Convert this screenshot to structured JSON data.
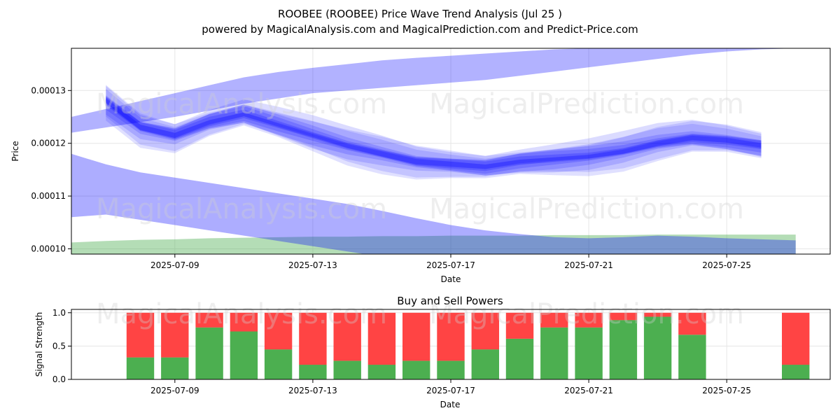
{
  "title": "ROOBEE (ROOBEE) Price Wave Trend Analysis (Jul 25 )",
  "subtitle": "powered by MagicalAnalysis.com and MagicalPrediction.com and Predict-Price.com",
  "watermarks": [
    "MagicalAnalysis.com",
    "MagicalPrediction.com"
  ],
  "colors": {
    "band": "#0000ff",
    "bandFade": "#8080ff",
    "green": "#4caf50",
    "red": "#ff4444",
    "lowBand": "#6b8fc0"
  },
  "chart_data": [
    {
      "type": "area",
      "xlabel": "Date",
      "ylabel": "Price",
      "x_tick_labels": [
        "2025-07-09",
        "2025-07-13",
        "2025-07-17",
        "2025-07-21",
        "2025-07-25"
      ],
      "y_tick_labels": [
        "0.00010",
        "0.00011",
        "0.00012",
        "0.00013"
      ],
      "ylim": [
        9.9e-05,
        0.000138
      ],
      "xlim": [
        "2025-07-06",
        "2025-07-28"
      ],
      "grid": true,
      "x": [
        "2025-07-06",
        "2025-07-07",
        "2025-07-08",
        "2025-07-09",
        "2025-07-10",
        "2025-07-11",
        "2025-07-12",
        "2025-07-13",
        "2025-07-14",
        "2025-07-15",
        "2025-07-16",
        "2025-07-17",
        "2025-07-18",
        "2025-07-19",
        "2025-07-20",
        "2025-07-21",
        "2025-07-22",
        "2025-07-23",
        "2025-07-24",
        "2025-07-25",
        "2025-07-26",
        "2025-07-27"
      ],
      "series": [
        {
          "role": "upper-wide-band",
          "lower": [
            0.000122,
            0.000123,
            0.000124,
            0.000125,
            0.0001262,
            0.0001275,
            0.0001285,
            0.0001295,
            0.00013,
            0.0001305,
            0.000131,
            0.0001315,
            0.000132,
            0.0001328,
            0.0001336,
            0.0001344,
            0.0001352,
            0.000136,
            0.0001368,
            0.0001374,
            0.0001378,
            0.000138
          ],
          "upper": [
            0.000125,
            0.0001265,
            0.000128,
            0.0001295,
            0.000131,
            0.0001325,
            0.0001335,
            0.0001343,
            0.000135,
            0.0001357,
            0.0001362,
            0.0001366,
            0.000137,
            0.0001374,
            0.0001378,
            0.000138,
            0.000138,
            0.000138,
            0.000138,
            0.000138,
            0.000138,
            0.000138
          ]
        },
        {
          "role": "wave-center",
          "values": [
            0.000128,
            0.000128,
            0.000123,
            0.0001215,
            0.000124,
            0.0001255,
            0.0001235,
            0.0001215,
            0.0001195,
            0.000118,
            0.0001165,
            0.000116,
            0.0001155,
            0.0001165,
            0.000117,
            0.0001175,
            0.0001185,
            0.00012,
            0.000121,
            0.0001205,
            0.0001195,
            0.000118
          ]
        },
        {
          "role": "lower-wide-band",
          "lower": [
            0.000106,
            0.0001065,
            0.0001055,
            0.0001045,
            0.0001035,
            0.0001025,
            0.0001015,
            0.0001005,
            9.95e-05,
            9.85e-05,
            9.75e-05,
            9.68e-05,
            9.62e-05,
            9.58e-05,
            9.6e-05,
            9.65e-05,
            9.7e-05,
            9.75e-05,
            9.8e-05,
            9.82e-05,
            9.85e-05,
            9.88e-05
          ],
          "upper": [
            0.000118,
            0.000116,
            0.0001145,
            0.0001135,
            0.0001125,
            0.0001115,
            0.0001105,
            0.0001095,
            0.0001085,
            0.0001072,
            0.0001058,
            0.0001045,
            0.0001035,
            0.0001028,
            0.0001022,
            0.000102,
            0.0001022,
            0.0001025,
            0.0001023,
            0.000102,
            0.0001018,
            0.0001016
          ]
        },
        {
          "role": "green-band",
          "lower": [
            9.9e-05,
            9.9e-05,
            9.9e-05,
            9.9e-05,
            9.9e-05,
            9.9e-05,
            9.9e-05,
            9.9e-05,
            9.9e-05,
            9.9e-05,
            9.9e-05,
            9.9e-05,
            9.9e-05,
            9.9e-05,
            9.9e-05,
            9.9e-05,
            9.9e-05,
            9.9e-05,
            9.9e-05,
            9.9e-05,
            9.9e-05,
            9.9e-05
          ],
          "upper": [
            0.0001012,
            0.0001015,
            0.0001017,
            0.0001018,
            0.000102,
            0.0001021,
            0.0001022,
            0.0001023,
            0.0001023,
            0.0001024,
            0.0001024,
            0.0001025,
            0.0001025,
            0.0001025,
            0.0001026,
            0.0001026,
            0.0001026,
            0.0001027,
            0.0001027,
            0.0001027,
            0.0001027,
            0.0001027
          ]
        }
      ]
    },
    {
      "type": "bar",
      "title": "Buy and Sell Powers",
      "xlabel": "Date",
      "ylabel": "Signal Strength",
      "x_tick_labels": [
        "2025-07-09",
        "2025-07-13",
        "2025-07-17",
        "2025-07-21",
        "2025-07-25"
      ],
      "y_tick_labels": [
        "0.0",
        "0.5",
        "1.0"
      ],
      "ylim": [
        0,
        1.05
      ],
      "xlim": [
        "2025-07-06",
        "2025-07-28"
      ],
      "categories": [
        "2025-07-08",
        "2025-07-09",
        "2025-07-10",
        "2025-07-11",
        "2025-07-12",
        "2025-07-13",
        "2025-07-14",
        "2025-07-15",
        "2025-07-16",
        "2025-07-17",
        "2025-07-18",
        "2025-07-19",
        "2025-07-20",
        "2025-07-21",
        "2025-07-22",
        "2025-07-23",
        "2025-07-24",
        "2025-07-27"
      ],
      "series": [
        {
          "role": "buy",
          "values": [
            0.33,
            0.33,
            0.78,
            0.72,
            0.45,
            0.22,
            0.28,
            0.22,
            0.28,
            0.28,
            0.45,
            0.61,
            0.78,
            0.78,
            0.89,
            0.94,
            0.67,
            0.22
          ]
        },
        {
          "role": "sell",
          "values": [
            0.67,
            0.67,
            0.22,
            0.28,
            0.55,
            0.78,
            0.72,
            0.78,
            0.72,
            0.72,
            0.55,
            0.39,
            0.22,
            0.22,
            0.11,
            0.06,
            0.33,
            0.78
          ]
        }
      ]
    }
  ]
}
